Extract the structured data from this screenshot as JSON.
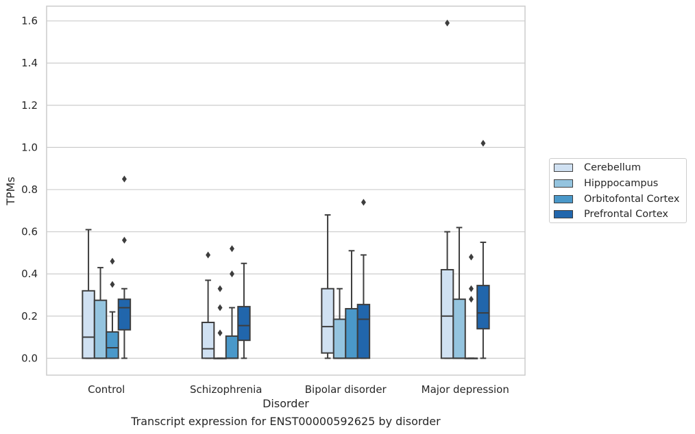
{
  "chart_data": {
    "type": "box",
    "xlabel": "Disorder",
    "ylabel": "TPMs",
    "ylim": [
      -0.08,
      1.67
    ],
    "yticks": [
      0.0,
      0.2,
      0.4,
      0.6,
      0.8,
      1.0,
      1.2,
      1.4,
      1.6
    ],
    "ytick_labels": [
      "0.0",
      "0.2",
      "0.4",
      "0.6",
      "0.8",
      "1.0",
      "1.2",
      "1.4",
      "1.6"
    ],
    "grid": "horizontal",
    "legend_position": "right",
    "categories": [
      "Control",
      "Schizophrenia",
      "Bipolar disorder",
      "Major depression"
    ],
    "series": [
      {
        "name": "Cerebellum",
        "color": "#d0e1f2",
        "boxes": [
          {
            "whisker_low": 0.0,
            "q1": 0.0,
            "median": 0.1,
            "q3": 0.32,
            "whisker_high": 0.61,
            "outliers": []
          },
          {
            "whisker_low": 0.0,
            "q1": 0.0,
            "median": 0.045,
            "q3": 0.17,
            "whisker_high": 0.37,
            "outliers": [
              0.49
            ]
          },
          {
            "whisker_low": 0.0,
            "q1": 0.025,
            "median": 0.15,
            "q3": 0.33,
            "whisker_high": 0.68,
            "outliers": []
          },
          {
            "whisker_low": 0.0,
            "q1": 0.0,
            "median": 0.2,
            "q3": 0.42,
            "whisker_high": 0.6,
            "outliers": [
              1.59
            ]
          }
        ]
      },
      {
        "name": "Hipppocampus",
        "color": "#94c4df",
        "boxes": [
          {
            "whisker_low": 0.0,
            "q1": 0.0,
            "median": 0.0,
            "q3": 0.275,
            "whisker_high": 0.43,
            "outliers": []
          },
          {
            "whisker_low": 0.0,
            "q1": 0.0,
            "median": 0.0,
            "q3": 0.0,
            "whisker_high": 0.0,
            "outliers": [
              0.12,
              0.24,
              0.33
            ]
          },
          {
            "whisker_low": 0.0,
            "q1": 0.0,
            "median": 0.0,
            "q3": 0.185,
            "whisker_high": 0.33,
            "outliers": []
          },
          {
            "whisker_low": 0.0,
            "q1": 0.0,
            "median": 0.0,
            "q3": 0.28,
            "whisker_high": 0.62,
            "outliers": []
          }
        ]
      },
      {
        "name": "Orbitofontal Cortex",
        "color": "#4a98c9",
        "boxes": [
          {
            "whisker_low": 0.0,
            "q1": 0.0,
            "median": 0.05,
            "q3": 0.125,
            "whisker_high": 0.22,
            "outliers": [
              0.35,
              0.46
            ]
          },
          {
            "whisker_low": 0.0,
            "q1": 0.0,
            "median": 0.0,
            "q3": 0.105,
            "whisker_high": 0.24,
            "outliers": [
              0.4,
              0.52
            ]
          },
          {
            "whisker_low": 0.0,
            "q1": 0.0,
            "median": 0.0,
            "q3": 0.235,
            "whisker_high": 0.51,
            "outliers": []
          },
          {
            "whisker_low": 0.0,
            "q1": 0.0,
            "median": 0.0,
            "q3": 0.0,
            "whisker_high": 0.0,
            "outliers": [
              0.28,
              0.33,
              0.48
            ]
          }
        ]
      },
      {
        "name": "Prefrontal Cortex",
        "color": "#2166ac",
        "boxes": [
          {
            "whisker_low": 0.0,
            "q1": 0.135,
            "median": 0.24,
            "q3": 0.28,
            "whisker_high": 0.33,
            "outliers": [
              0.56,
              0.85
            ]
          },
          {
            "whisker_low": 0.0,
            "q1": 0.085,
            "median": 0.155,
            "q3": 0.245,
            "whisker_high": 0.45,
            "outliers": []
          },
          {
            "whisker_low": 0.0,
            "q1": 0.0,
            "median": 0.185,
            "q3": 0.255,
            "whisker_high": 0.49,
            "outliers": [
              0.74
            ]
          },
          {
            "whisker_low": 0.0,
            "q1": 0.14,
            "median": 0.215,
            "q3": 0.345,
            "whisker_high": 0.55,
            "outliers": [
              1.02
            ]
          }
        ]
      }
    ]
  },
  "caption": "Transcript expression for ENST00000592625 by disorder"
}
